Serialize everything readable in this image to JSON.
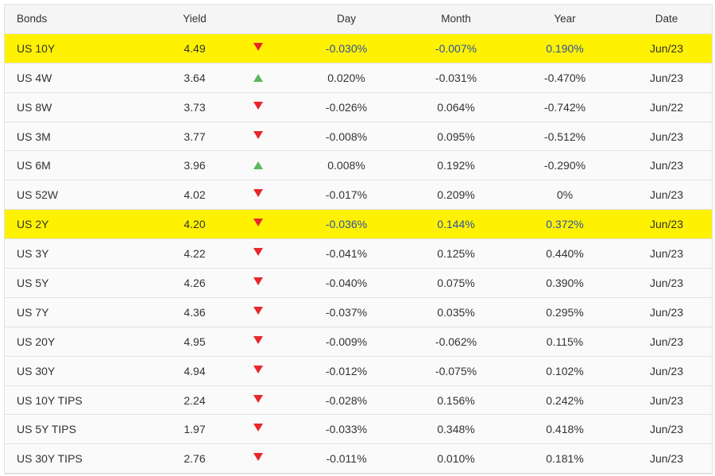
{
  "table": {
    "header": [
      "Bonds",
      "Yield",
      "Day",
      "Month",
      "Year",
      "Date"
    ],
    "rows": [
      {
        "bond": "US 10Y",
        "yield": "4.49",
        "trend": "down",
        "day": "-0.030%",
        "month": "-0.007%",
        "year": "0.190%",
        "date": "Jun/23",
        "highlight": true
      },
      {
        "bond": "US 4W",
        "yield": "3.64",
        "trend": "up",
        "day": "0.020%",
        "month": "-0.031%",
        "year": "-0.470%",
        "date": "Jun/23",
        "highlight": false
      },
      {
        "bond": "US 8W",
        "yield": "3.73",
        "trend": "down",
        "day": "-0.026%",
        "month": "0.064%",
        "year": "-0.742%",
        "date": "Jun/22",
        "highlight": false
      },
      {
        "bond": "US 3M",
        "yield": "3.77",
        "trend": "down",
        "day": "-0.008%",
        "month": "0.095%",
        "year": "-0.512%",
        "date": "Jun/23",
        "highlight": false
      },
      {
        "bond": "US 6M",
        "yield": "3.96",
        "trend": "up",
        "day": "0.008%",
        "month": "0.192%",
        "year": "-0.290%",
        "date": "Jun/23",
        "highlight": false
      },
      {
        "bond": "US 52W",
        "yield": "4.02",
        "trend": "down",
        "day": "-0.017%",
        "month": "0.209%",
        "year": "0%",
        "date": "Jun/23",
        "highlight": false
      },
      {
        "bond": "US 2Y",
        "yield": "4.20",
        "trend": "down",
        "day": "-0.036%",
        "month": "0.144%",
        "year": "0.372%",
        "date": "Jun/23",
        "highlight": true
      },
      {
        "bond": "US 3Y",
        "yield": "4.22",
        "trend": "down",
        "day": "-0.041%",
        "month": "0.125%",
        "year": "0.440%",
        "date": "Jun/23",
        "highlight": false
      },
      {
        "bond": "US 5Y",
        "yield": "4.26",
        "trend": "down",
        "day": "-0.040%",
        "month": "0.075%",
        "year": "0.390%",
        "date": "Jun/23",
        "highlight": false
      },
      {
        "bond": "US 7Y",
        "yield": "4.36",
        "trend": "down",
        "day": "-0.037%",
        "month": "0.035%",
        "year": "0.295%",
        "date": "Jun/23",
        "highlight": false
      },
      {
        "bond": "US 20Y",
        "yield": "4.95",
        "trend": "down",
        "day": "-0.009%",
        "month": "-0.062%",
        "year": "0.115%",
        "date": "Jun/23",
        "highlight": false
      },
      {
        "bond": "US 30Y",
        "yield": "4.94",
        "trend": "down",
        "day": "-0.012%",
        "month": "-0.075%",
        "year": "0.102%",
        "date": "Jun/23",
        "highlight": false
      },
      {
        "bond": "US 10Y TIPS",
        "yield": "2.24",
        "trend": "down",
        "day": "-0.028%",
        "month": "0.156%",
        "year": "0.242%",
        "date": "Jun/23",
        "highlight": false
      },
      {
        "bond": "US 5Y TIPS",
        "yield": "1.97",
        "trend": "down",
        "day": "-0.033%",
        "month": "0.348%",
        "year": "0.418%",
        "date": "Jun/23",
        "highlight": false
      },
      {
        "bond": "US 30Y TIPS",
        "yield": "2.76",
        "trend": "down",
        "day": "-0.011%",
        "month": "0.010%",
        "year": "0.181%",
        "date": "Jun/23",
        "highlight": false
      }
    ]
  }
}
